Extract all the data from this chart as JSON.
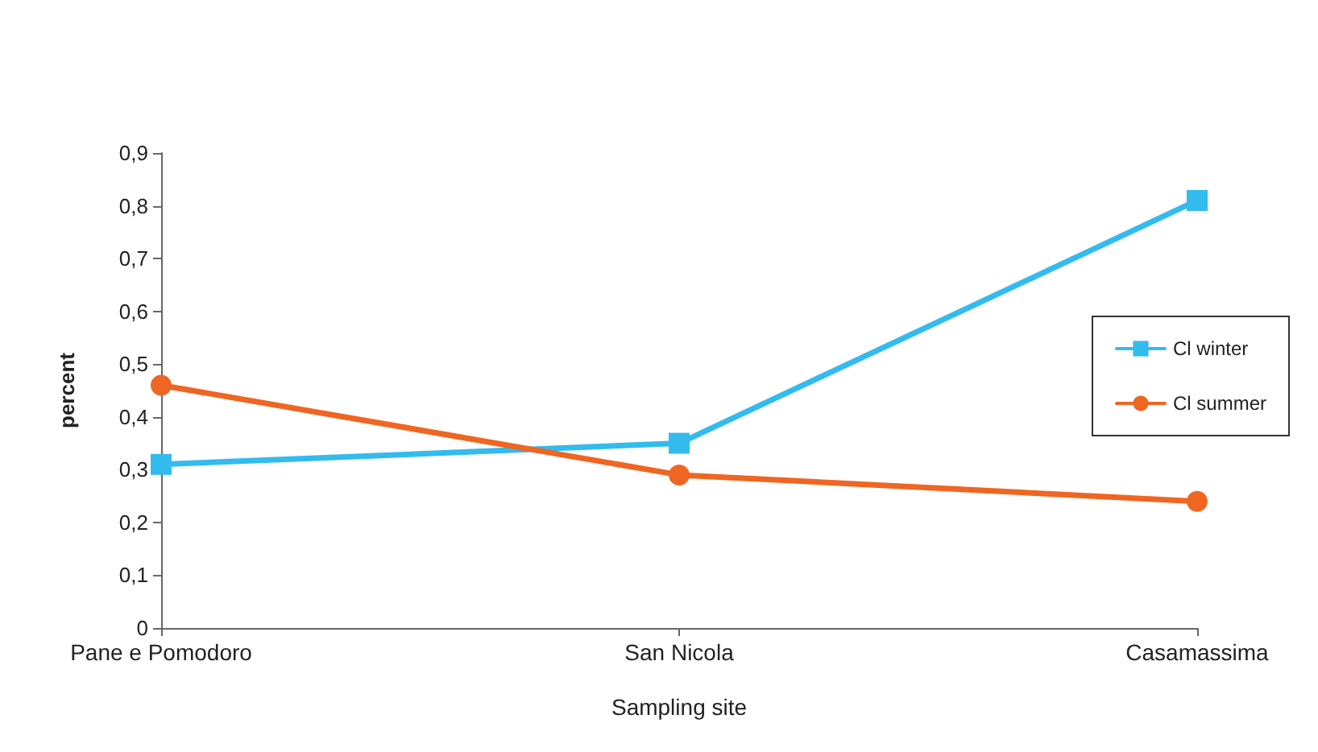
{
  "chart_data": {
    "type": "line",
    "xlabel": "Sampling site",
    "ylabel": "percent",
    "categories": [
      "Pane e Pomodoro",
      "San Nicola",
      "Casamassima"
    ],
    "series": [
      {
        "name": "Cl winter",
        "color": "#33bbee",
        "marker": "square",
        "values": [
          0.31,
          0.35,
          0.81
        ]
      },
      {
        "name": "Cl summer",
        "color": "#ee6622",
        "marker": "circle",
        "values": [
          0.46,
          0.29,
          0.24
        ]
      }
    ],
    "ylim": [
      0,
      0.9
    ],
    "yticks": [
      {
        "value": 0,
        "label": "0"
      },
      {
        "value": 0.1,
        "label": "0,1"
      },
      {
        "value": 0.2,
        "label": "0,2"
      },
      {
        "value": 0.3,
        "label": "0,3"
      },
      {
        "value": 0.4,
        "label": "0,4"
      },
      {
        "value": 0.5,
        "label": "0,5"
      },
      {
        "value": 0.6,
        "label": "0,6"
      },
      {
        "value": 0.7,
        "label": "0,7"
      },
      {
        "value": 0.8,
        "label": "0,8"
      },
      {
        "value": 0.9,
        "label": "0,9"
      }
    ],
    "grid": false,
    "legend": "right",
    "line_style": "solid"
  }
}
